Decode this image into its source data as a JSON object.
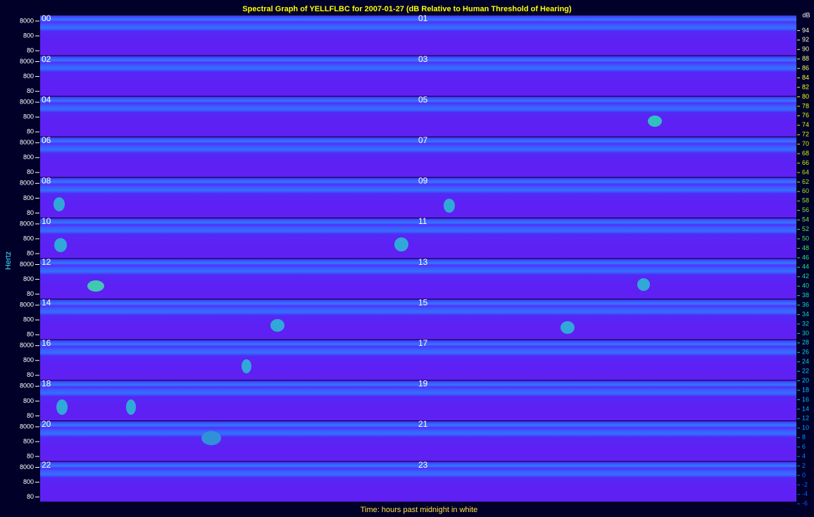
{
  "chart_data": {
    "type": "spectrogram",
    "title": "Spectral Graph of YELLFLBC for 2007-01-27 (dB Relative to Human Threshold of Hearing)",
    "x_label": "Time: hours past midnight in white",
    "y_label": "Hertz",
    "yscale": "log",
    "ylim": [
      35,
      19000
    ],
    "yticks": [
      8000,
      800,
      80
    ],
    "panels": [
      "00",
      "01",
      "02",
      "03",
      "04",
      "05",
      "06",
      "07",
      "08",
      "09",
      "10",
      "11",
      "12",
      "13",
      "14",
      "15",
      "16",
      "17",
      "18",
      "19",
      "20",
      "21",
      "22",
      "23"
    ],
    "colorbar": {
      "label": "dB",
      "clim": [
        -7,
        96
      ],
      "ticks": [
        94,
        92,
        90,
        88,
        86,
        84,
        82,
        80,
        78,
        76,
        74,
        72,
        70,
        68,
        66,
        64,
        62,
        60,
        58,
        56,
        54,
        52,
        50,
        48,
        46,
        44,
        42,
        40,
        38,
        36,
        34,
        32,
        30,
        28,
        26,
        24,
        22,
        20,
        18,
        16,
        14,
        12,
        10,
        8,
        6,
        4,
        2,
        0,
        -2,
        -4,
        -6
      ]
    }
  }
}
